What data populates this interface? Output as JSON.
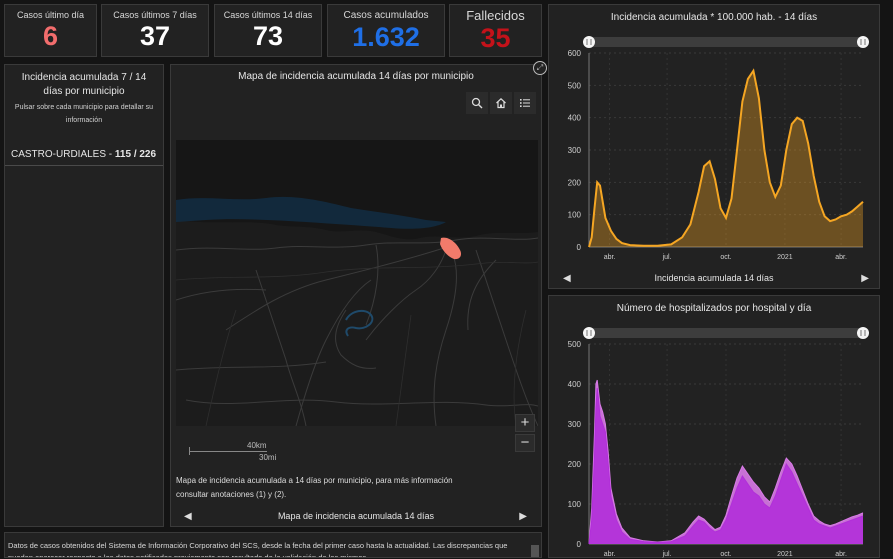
{
  "kpis": [
    {
      "label": "Casos último día",
      "value": "6",
      "color": "#f26d6d"
    },
    {
      "label": "Casos últimos 7 días",
      "value": "37",
      "color": "#ffffff"
    },
    {
      "label": "Casos últimos 14 días",
      "value": "73",
      "color": "#ffffff"
    },
    {
      "label": "Casos acumulados",
      "value": "1.632",
      "color": "#1f6fe6"
    },
    {
      "label": "Fallecidos",
      "value": "35",
      "color": "#c4121a"
    }
  ],
  "left_panel": {
    "title": "Incidencia acumulada 7 / 14 días por municipio",
    "subtitle": "Pulsar sobre cada municipio para detallar su información",
    "item_name": "CASTRO-URDIALES",
    "item_sep": " - ",
    "item_value": "115 / 226"
  },
  "map_panel": {
    "title": "Mapa de incidencia acumulada 14 días por municipio",
    "scale_km": "40km",
    "scale_mi": "30mi",
    "caption": "Mapa de incidencia acumulada a 14 días por municipio, para más información consultar anotaciones (1) y (2).",
    "footer_label": "Mapa de incidencia acumulada 14 días",
    "zoom_in": "+",
    "zoom_out": "−",
    "highlight_color": "#f27b6b"
  },
  "footer_text": "Datos de casos obtenidos del Sistema de Información Corporativo del SCS, desde la fecha del primer caso hasta la actualidad. Las discrepancias que puedan aparecer respecto a los datos notificados previamente son resultado de la validación de los mismos.",
  "chart_panels": {
    "incidence_footer": "Incidencia acumulada 14 días"
  },
  "chart_data": [
    {
      "type": "area",
      "title": "Incidencia acumulada * 100.000 hab. - 14 días",
      "color": "#f5a623",
      "ylim": [
        0,
        600
      ],
      "yticks": [
        0,
        100,
        200,
        300,
        400,
        500,
        600
      ],
      "x_ticks": [
        {
          "label": "abr.",
          "x": 0.075
        },
        {
          "label": "jul.",
          "x": 0.285
        },
        {
          "label": "oct.",
          "x": 0.5
        },
        {
          "label": "2021",
          "x": 0.715
        },
        {
          "label": "abr.",
          "x": 0.92
        }
      ],
      "x": [
        0,
        0.01,
        0.02,
        0.03,
        0.04,
        0.05,
        0.06,
        0.08,
        0.1,
        0.12,
        0.15,
        0.2,
        0.25,
        0.3,
        0.34,
        0.37,
        0.4,
        0.42,
        0.44,
        0.46,
        0.48,
        0.5,
        0.52,
        0.54,
        0.56,
        0.58,
        0.6,
        0.62,
        0.64,
        0.66,
        0.68,
        0.7,
        0.72,
        0.74,
        0.76,
        0.78,
        0.8,
        0.82,
        0.84,
        0.86,
        0.88,
        0.9,
        0.92,
        0.94,
        0.96,
        0.98,
        1.0
      ],
      "values": [
        0,
        30,
        120,
        200,
        190,
        140,
        90,
        50,
        25,
        12,
        6,
        4,
        4,
        8,
        30,
        70,
        170,
        250,
        265,
        210,
        120,
        90,
        150,
        300,
        450,
        520,
        545,
        460,
        300,
        200,
        155,
        190,
        300,
        380,
        400,
        390,
        320,
        220,
        140,
        95,
        80,
        85,
        95,
        100,
        110,
        125,
        140
      ]
    },
    {
      "type": "area",
      "title": "Número de hospitalizados por hospital y día",
      "color": "#b12fd9",
      "color2": "#d97ae8",
      "ylim": [
        0,
        500
      ],
      "yticks": [
        0,
        100,
        200,
        300,
        400,
        500
      ],
      "x_ticks": [
        {
          "label": "abr.",
          "x": 0.075
        },
        {
          "label": "jul.",
          "x": 0.285
        },
        {
          "label": "oct.",
          "x": 0.5
        },
        {
          "label": "2021",
          "x": 0.715
        },
        {
          "label": "abr.",
          "x": 0.92
        }
      ],
      "series": [
        {
          "name": "",
          "x": [
            0,
            0.01,
            0.02,
            0.025,
            0.03,
            0.035,
            0.04,
            0.05,
            0.06,
            0.07,
            0.08,
            0.1,
            0.12,
            0.15,
            0.2,
            0.25,
            0.3,
            0.35,
            0.38,
            0.4,
            0.42,
            0.44,
            0.46,
            0.48,
            0.5,
            0.52,
            0.54,
            0.56,
            0.58,
            0.6,
            0.62,
            0.64,
            0.66,
            0.68,
            0.7,
            0.72,
            0.74,
            0.76,
            0.78,
            0.8,
            0.82,
            0.84,
            0.86,
            0.88,
            0.9,
            0.92,
            0.94,
            0.96,
            0.98,
            1.0
          ],
          "values": [
            0,
            60,
            220,
            340,
            390,
            360,
            320,
            300,
            280,
            200,
            120,
            60,
            30,
            12,
            6,
            4,
            6,
            20,
            45,
            60,
            55,
            40,
            30,
            35,
            60,
            100,
            140,
            170,
            150,
            130,
            120,
            100,
            90,
            120,
            160,
            200,
            180,
            150,
            120,
            90,
            60,
            50,
            45,
            40,
            45,
            50,
            55,
            60,
            65,
            70
          ]
        },
        {
          "name": "",
          "x": [
            0,
            0.01,
            0.02,
            0.025,
            0.03,
            0.035,
            0.04,
            0.05,
            0.06,
            0.07,
            0.08,
            0.1,
            0.12,
            0.15,
            0.2,
            0.25,
            0.3,
            0.35,
            0.38,
            0.4,
            0.42,
            0.44,
            0.46,
            0.48,
            0.5,
            0.52,
            0.54,
            0.56,
            0.58,
            0.6,
            0.62,
            0.64,
            0.66,
            0.68,
            0.7,
            0.72,
            0.74,
            0.76,
            0.78,
            0.8,
            0.82,
            0.84,
            0.86,
            0.88,
            0.9,
            0.92,
            0.94,
            0.96,
            0.98,
            1.0
          ],
          "values": [
            0,
            90,
            280,
            400,
            410,
            380,
            350,
            330,
            300,
            230,
            140,
            75,
            40,
            16,
            8,
            5,
            8,
            28,
            55,
            70,
            62,
            48,
            36,
            42,
            72,
            120,
            165,
            195,
            175,
            155,
            140,
            118,
            105,
            140,
            180,
            215,
            200,
            170,
            135,
            100,
            70,
            58,
            50,
            46,
            50,
            56,
            62,
            68,
            72,
            78
          ]
        }
      ]
    }
  ]
}
